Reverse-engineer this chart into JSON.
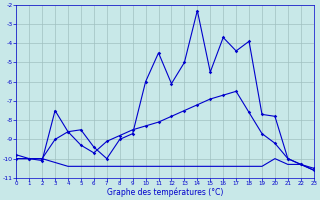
{
  "xlabel": "Graphe des températures (°C)",
  "background_color": "#c8e8e8",
  "grid_color": "#a0c0c0",
  "line_color": "#0000cc",
  "xlim_min": 0,
  "xlim_max": 23,
  "ylim_min": -11,
  "ylim_max": -2,
  "xticks": [
    0,
    1,
    2,
    3,
    4,
    5,
    6,
    7,
    8,
    9,
    10,
    11,
    12,
    13,
    14,
    15,
    16,
    17,
    18,
    19,
    20,
    21,
    22,
    23
  ],
  "yticks": [
    -2,
    -3,
    -4,
    -5,
    -6,
    -7,
    -8,
    -9,
    -10,
    -11
  ],
  "line1_x": [
    0,
    1,
    2,
    3,
    4,
    5,
    6,
    7,
    8,
    9,
    10,
    11,
    12,
    13,
    14,
    15,
    16,
    17,
    18,
    19,
    20,
    21,
    22,
    23
  ],
  "line1_y": [
    -10.0,
    -10.0,
    -10.1,
    -7.5,
    -8.6,
    -8.5,
    -9.4,
    -10.0,
    -9.0,
    -8.7,
    -6.0,
    -4.5,
    -6.1,
    -5.0,
    -2.3,
    -5.5,
    -3.7,
    -4.4,
    -3.9,
    -7.7,
    -7.8,
    -10.0,
    -10.3,
    -10.6
  ],
  "line2_x": [
    0,
    1,
    2,
    3,
    4,
    5,
    6,
    7,
    8,
    9,
    10,
    11,
    12,
    13,
    14,
    15,
    16,
    17,
    18,
    19,
    20,
    21,
    22,
    23
  ],
  "line2_y": [
    -9.8,
    -10.0,
    -10.0,
    -9.0,
    -8.6,
    -9.3,
    -9.7,
    -9.1,
    -8.8,
    -8.5,
    -8.3,
    -8.1,
    -7.8,
    -7.5,
    -7.2,
    -6.9,
    -6.7,
    -6.5,
    -7.6,
    -8.7,
    -9.2,
    -10.0,
    -10.3,
    -10.5
  ],
  "line3_x": [
    0,
    1,
    2,
    3,
    4,
    5,
    6,
    7,
    8,
    9,
    10,
    11,
    12,
    13,
    14,
    15,
    16,
    17,
    18,
    19,
    20,
    21,
    22,
    23
  ],
  "line3_y": [
    -10.0,
    -10.0,
    -10.0,
    -10.2,
    -10.4,
    -10.4,
    -10.4,
    -10.4,
    -10.4,
    -10.4,
    -10.4,
    -10.4,
    -10.4,
    -10.4,
    -10.4,
    -10.4,
    -10.4,
    -10.4,
    -10.4,
    -10.4,
    -10.0,
    -10.3,
    -10.3,
    -10.6
  ]
}
